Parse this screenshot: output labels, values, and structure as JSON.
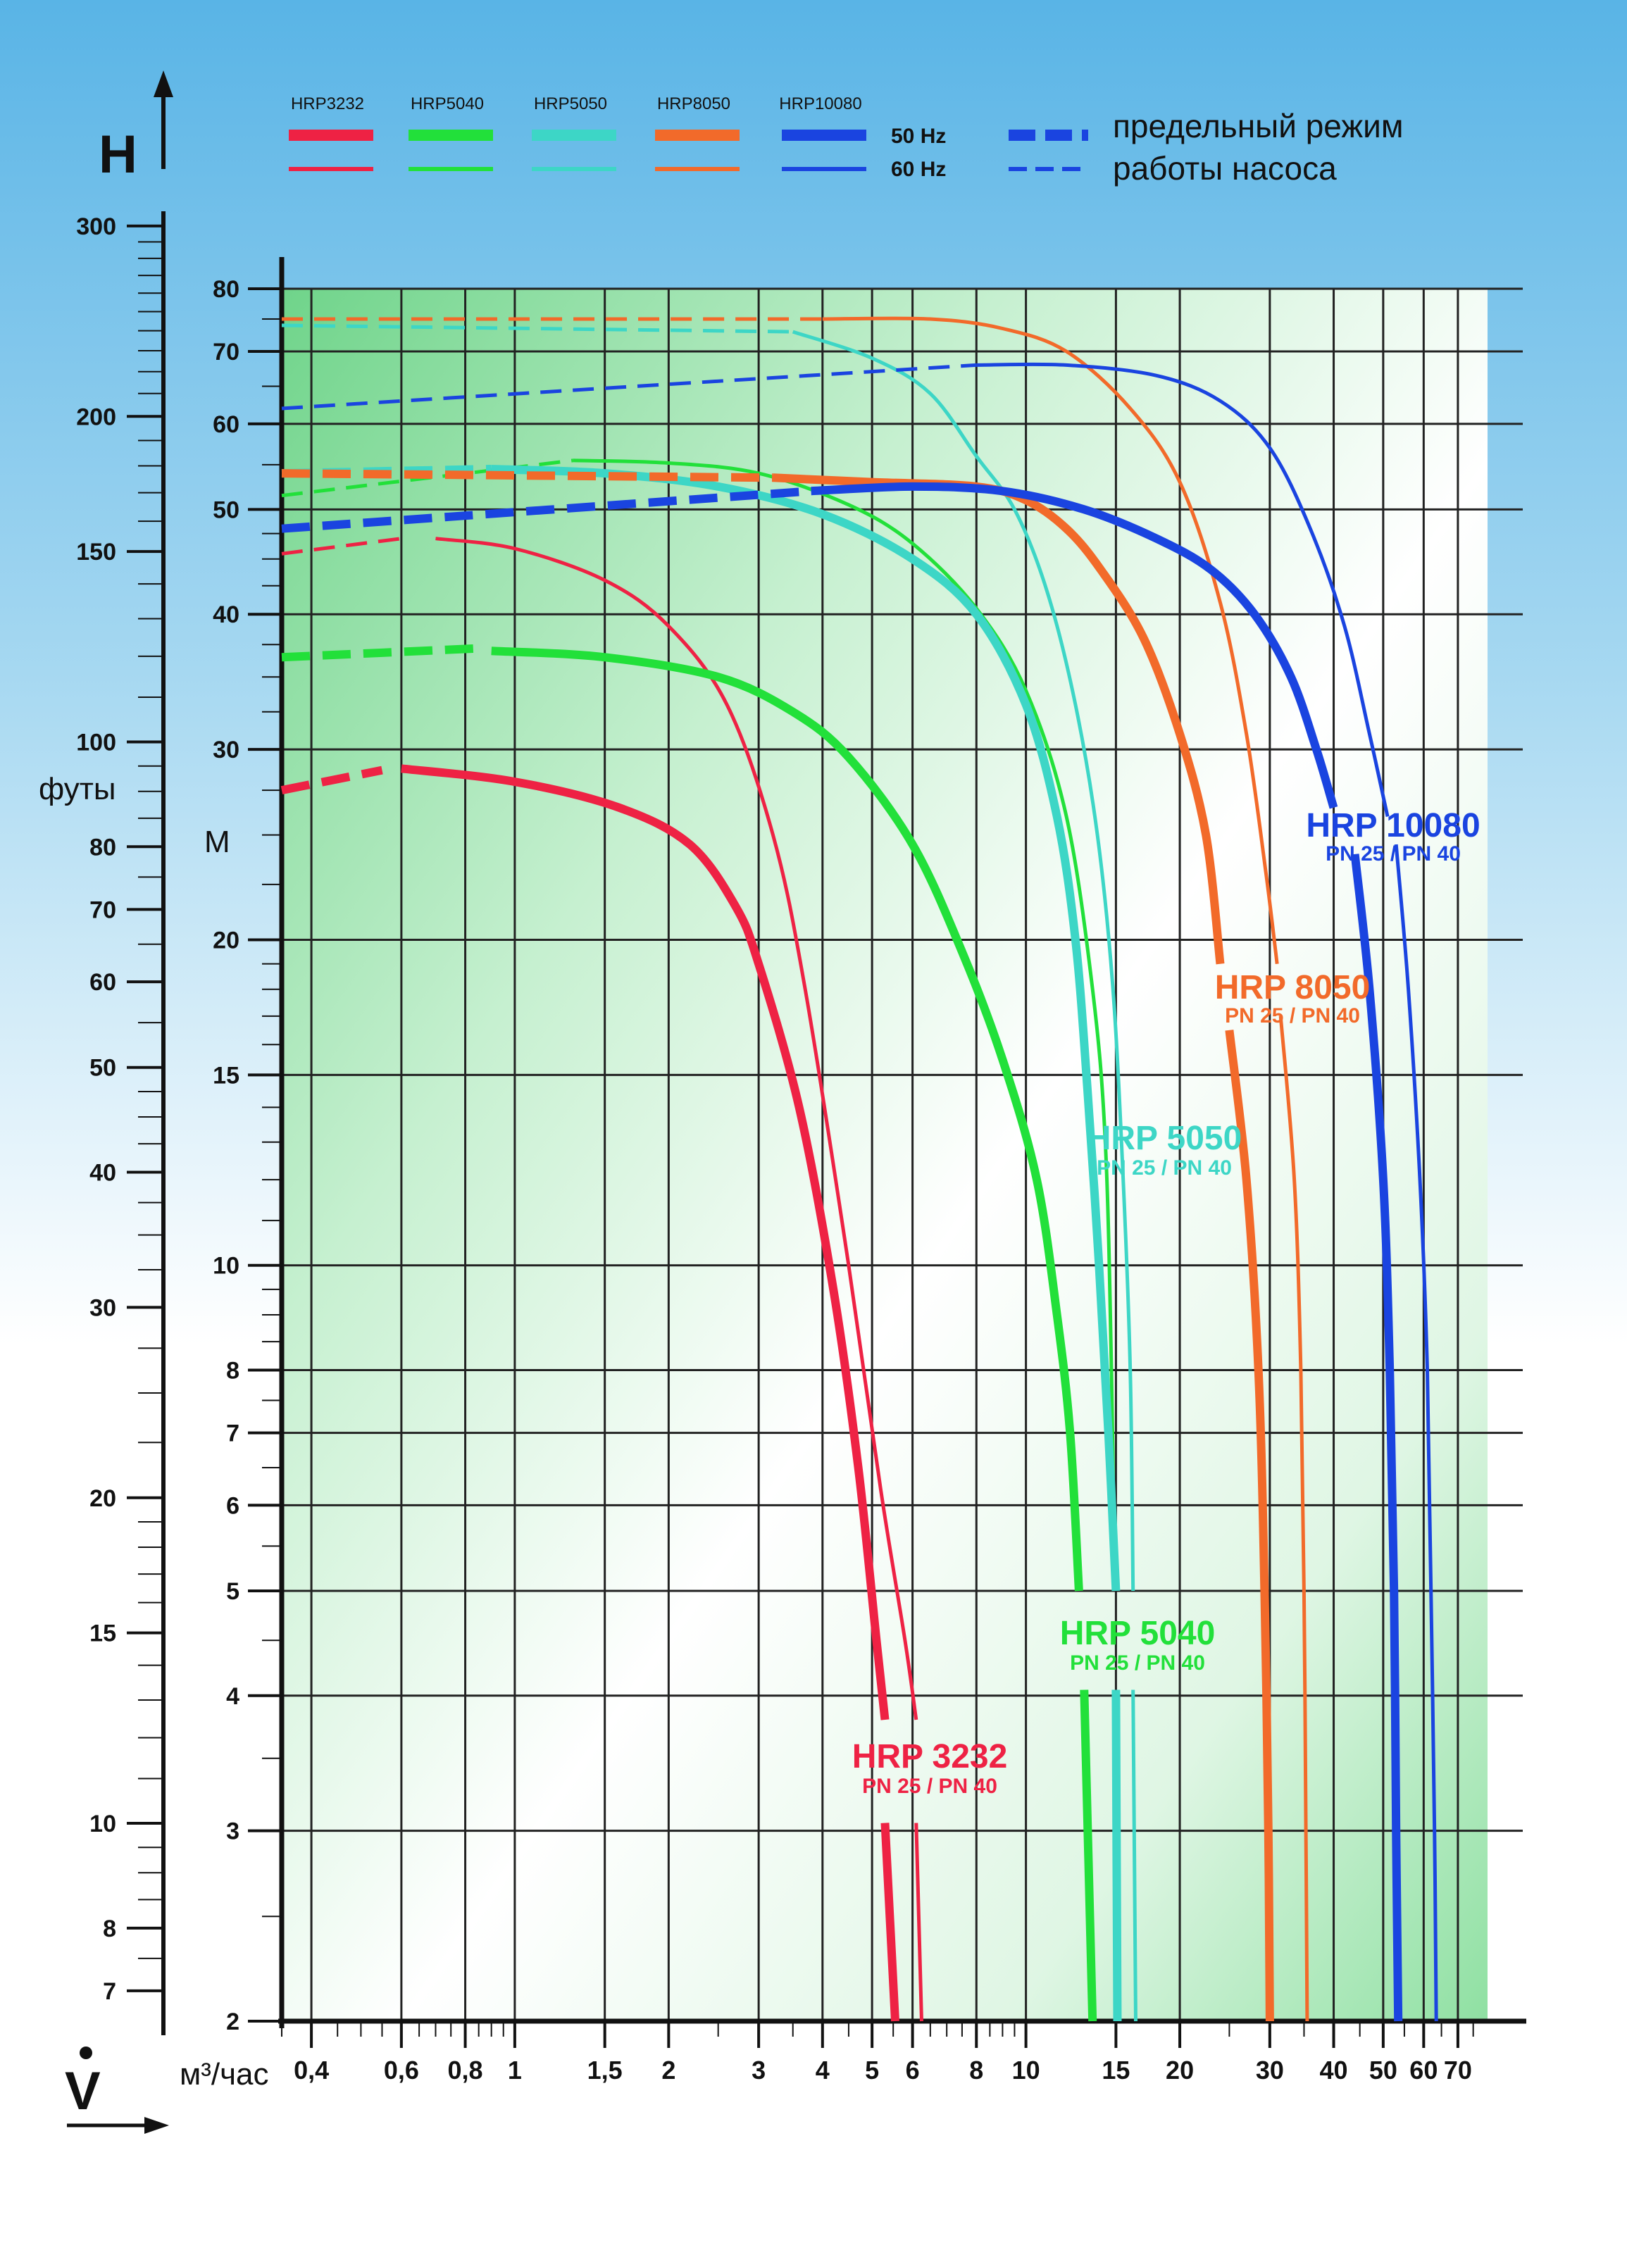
{
  "chart_data": {
    "type": "line",
    "title": "",
    "x_axis": {
      "label": "V",
      "unit": "м³/час",
      "scale": "log",
      "range": [
        0.35,
        80
      ],
      "tick_labels": [
        "0,4",
        "0,6",
        "0,8",
        "1",
        "1,5",
        "2",
        "3",
        "4",
        "5",
        "6",
        "8",
        "10",
        "15",
        "20",
        "30",
        "40",
        "50",
        "60",
        "70"
      ],
      "tick_values": [
        0.4,
        0.6,
        0.8,
        1,
        1.5,
        2,
        3,
        4,
        5,
        6,
        8,
        10,
        15,
        20,
        30,
        40,
        50,
        60,
        70
      ]
    },
    "y_axis": {
      "label": "H",
      "unit": "М",
      "scale": "log",
      "range": [
        2,
        80
      ],
      "tick_labels": [
        "2",
        "3",
        "4",
        "5",
        "6",
        "7",
        "8",
        "10",
        "15",
        "20",
        "30",
        "40",
        "50",
        "60",
        "70",
        "80"
      ],
      "tick_values": [
        2,
        3,
        4,
        5,
        6,
        7,
        8,
        10,
        15,
        20,
        30,
        40,
        50,
        60,
        70,
        80
      ]
    },
    "y_axis_secondary": {
      "unit": "футы",
      "scale": "log",
      "tick_labels": [
        "7",
        "8",
        "10",
        "15",
        "20",
        "30",
        "40",
        "50",
        "60",
        "70",
        "80",
        "100",
        "150",
        "200",
        "300"
      ],
      "tick_values": [
        7,
        8,
        10,
        15,
        20,
        30,
        40,
        50,
        60,
        70,
        80,
        100,
        150,
        200,
        300
      ]
    },
    "grid": true,
    "legend": {
      "placement": "top",
      "hz50_label": "50 Hz",
      "hz60_label": "60 Hz",
      "limit_line1": "предельный режим",
      "limit_line2": "работы насоса"
    },
    "series": [
      {
        "name": "HRP3232",
        "label_title": "HRP 3232",
        "label_sub": "PN 25 / PN 40",
        "color": "#ee2244",
        "hz50": {
          "limit": [
            [
              0.35,
              27.5
            ],
            [
              0.55,
              28.7
            ]
          ],
          "main": [
            [
              0.6,
              28.8
            ],
            [
              1.0,
              28.0
            ],
            [
              1.6,
              26.5
            ],
            [
              2.2,
              24.5
            ],
            [
              2.7,
              21.5
            ],
            [
              3.0,
              19.0
            ],
            [
              3.6,
              14.0
            ],
            [
              4.2,
              9.5
            ],
            [
              4.7,
              6.5
            ],
            [
              5.1,
              4.5
            ],
            [
              5.3,
              3.8
            ]
          ],
          "tail": [
            [
              5.3,
              3.05
            ],
            [
              5.55,
              2.0
            ]
          ]
        },
        "hz60": {
          "limit": [
            [
              0.35,
              45.5
            ],
            [
              0.6,
              47.0
            ]
          ],
          "main": [
            [
              0.7,
              47.0
            ],
            [
              1.0,
              46.0
            ],
            [
              1.5,
              43.0
            ],
            [
              2.0,
              39.0
            ],
            [
              2.6,
              33.0
            ],
            [
              3.2,
              25.0
            ],
            [
              3.7,
              18.0
            ],
            [
              4.5,
              10.0
            ],
            [
              5.2,
              6.2
            ],
            [
              5.8,
              4.5
            ],
            [
              6.1,
              3.8
            ]
          ],
          "tail": [
            [
              6.1,
              3.05
            ],
            [
              6.25,
              2.0
            ]
          ]
        }
      },
      {
        "name": "HRP5040",
        "label_title": "HRP 5040",
        "label_sub": "PN 25 / PN 40",
        "color": "#22e03a",
        "hz50": {
          "limit": [
            [
              0.35,
              36.5
            ],
            [
              0.85,
              37.2
            ]
          ],
          "main": [
            [
              0.9,
              37.0
            ],
            [
              1.5,
              36.5
            ],
            [
              2.5,
              35.0
            ],
            [
              3.5,
              32.5
            ],
            [
              4.5,
              29.5
            ],
            [
              6.0,
              24.5
            ],
            [
              7.5,
              19.5
            ],
            [
              9.0,
              15.5
            ],
            [
              10.5,
              12.0
            ],
            [
              11.5,
              9.0
            ],
            [
              12.2,
              7.0
            ],
            [
              12.7,
              5.0
            ]
          ],
          "tail": [
            [
              13.0,
              4.05
            ],
            [
              13.5,
              2.0
            ]
          ]
        },
        "hz60": {
          "limit": [
            [
              0.35,
              51.5
            ],
            [
              1.3,
              55.5
            ]
          ],
          "main": [
            [
              1.3,
              55.5
            ],
            [
              2.0,
              55.2
            ],
            [
              3.0,
              54.0
            ],
            [
              4.5,
              50.5
            ],
            [
              6.0,
              46.5
            ],
            [
              8.0,
              40.5
            ],
            [
              10.0,
              34.0
            ],
            [
              12.0,
              26.0
            ],
            [
              13.5,
              18.0
            ],
            [
              14.3,
              13.0
            ],
            [
              14.7,
              8.0
            ],
            [
              14.9,
              5.0
            ]
          ],
          "tail": [
            [
              15.0,
              4.05
            ],
            [
              15.1,
              2.0
            ]
          ]
        }
      },
      {
        "name": "HRP5050",
        "label_title": "HRP 5050",
        "label_sub": "PN 25 / PN 40",
        "color": "#3dd6c6",
        "hz50": {
          "limit": [
            [
              0.35,
              54.0
            ],
            [
              0.9,
              54.5
            ]
          ],
          "main": [
            [
              0.9,
              54.5
            ],
            [
              1.5,
              54.0
            ],
            [
              2.5,
              52.5
            ],
            [
              4.0,
              49.5
            ],
            [
              6.0,
              45.0
            ],
            [
              8.0,
              40.0
            ],
            [
              10.0,
              33.0
            ],
            [
              11.5,
              26.0
            ],
            [
              12.5,
              20.0
            ],
            [
              13.2,
              14.5
            ],
            [
              13.9,
              10.0
            ],
            [
              14.5,
              7.0
            ],
            [
              15.0,
              5.0
            ]
          ],
          "tail": [
            [
              15.0,
              4.05
            ],
            [
              15.1,
              2.0
            ]
          ]
        },
        "hz60": {
          "limit": [
            [
              0.35,
              74.0
            ],
            [
              3.5,
              73.0
            ]
          ],
          "main": [
            [
              3.5,
              73.0
            ],
            [
              5.0,
              69.0
            ],
            [
              6.5,
              64.0
            ],
            [
              8.0,
              56.0
            ],
            [
              9.5,
              50.0
            ],
            [
              11.0,
              42.0
            ],
            [
              12.5,
              33.0
            ],
            [
              13.8,
              25.0
            ],
            [
              14.8,
              18.0
            ],
            [
              15.5,
              12.0
            ],
            [
              16.0,
              8.0
            ],
            [
              16.2,
              5.0
            ]
          ],
          "tail": [
            [
              16.2,
              4.05
            ],
            [
              16.4,
              2.0
            ]
          ]
        }
      },
      {
        "name": "HRP8050",
        "label_title": "HRP 8050",
        "label_sub": "PN 25 / PN 40",
        "color": "#f26a2a",
        "hz50": {
          "limit": [
            [
              0.35,
              54.0
            ],
            [
              3.2,
              53.5
            ]
          ],
          "main": [
            [
              3.2,
              53.5
            ],
            [
              5.0,
              53.0
            ],
            [
              8.0,
              52.5
            ],
            [
              10.0,
              51.0
            ],
            [
              12.0,
              48.0
            ],
            [
              14.0,
              44.0
            ],
            [
              17.0,
              38.0
            ],
            [
              20.0,
              31.0
            ],
            [
              22.5,
              25.0
            ],
            [
              24.0,
              19.0
            ]
          ],
          "tail": [
            [
              25.0,
              16.5
            ],
            [
              27.0,
              12.0
            ],
            [
              28.5,
              8.0
            ],
            [
              29.3,
              5.0
            ],
            [
              29.8,
              3.0
            ],
            [
              30.0,
              2.0
            ]
          ]
        },
        "hz60": {
          "limit": [
            [
              0.35,
              75.0
            ],
            [
              4.0,
              75.0
            ]
          ],
          "main": [
            [
              4.0,
              75.0
            ],
            [
              6.5,
              75.0
            ],
            [
              9.0,
              73.5
            ],
            [
              12.0,
              70.0
            ],
            [
              16.0,
              62.0
            ],
            [
              20.0,
              53.0
            ],
            [
              24.0,
              41.0
            ],
            [
              27.0,
              31.0
            ],
            [
              29.5,
              23.0
            ],
            [
              31.0,
              19.0
            ]
          ],
          "tail": [
            [
              31.5,
              17.0
            ],
            [
              33.5,
              12.0
            ],
            [
              34.5,
              8.0
            ],
            [
              35.0,
              5.0
            ],
            [
              35.3,
              3.0
            ],
            [
              35.5,
              2.0
            ]
          ]
        }
      },
      {
        "name": "HRP10080",
        "label_title": "HRP 10080",
        "label_sub": "PN 25 / PN 40",
        "color": "#1a44e0",
        "hz50": {
          "limit": [
            [
              0.35,
              48.0
            ],
            [
              3.8,
              52.0
            ]
          ],
          "main": [
            [
              3.8,
              52.0
            ],
            [
              6.0,
              52.5
            ],
            [
              9.0,
              52.0
            ],
            [
              13.0,
              50.0
            ],
            [
              18.0,
              47.0
            ],
            [
              23.0,
              44.0
            ],
            [
              28.0,
              40.0
            ],
            [
              33.0,
              35.0
            ],
            [
              37.0,
              30.0
            ],
            [
              40.0,
              26.5
            ]
          ],
          "tail": [
            [
              44.0,
              24.0
            ],
            [
              47.0,
              18.0
            ],
            [
              50.0,
              12.0
            ],
            [
              51.5,
              8.0
            ],
            [
              52.5,
              5.0
            ],
            [
              53.0,
              3.0
            ],
            [
              53.5,
              2.0
            ]
          ]
        },
        "hz60": {
          "limit": [
            [
              0.35,
              62.0
            ],
            [
              8.0,
              68.0
            ]
          ],
          "main": [
            [
              8.0,
              68.0
            ],
            [
              12.0,
              68.0
            ],
            [
              18.0,
              66.5
            ],
            [
              24.0,
              63.0
            ],
            [
              30.0,
              57.0
            ],
            [
              36.0,
              48.0
            ],
            [
              42.0,
              39.0
            ],
            [
              47.0,
              31.0
            ],
            [
              51.0,
              26.0
            ]
          ],
          "tail": [
            [
              53.0,
              24.5
            ],
            [
              56.0,
              18.0
            ],
            [
              59.0,
              12.0
            ],
            [
              61.0,
              8.0
            ],
            [
              62.0,
              5.0
            ],
            [
              63.0,
              3.0
            ],
            [
              63.5,
              2.0
            ]
          ]
        }
      }
    ]
  }
}
